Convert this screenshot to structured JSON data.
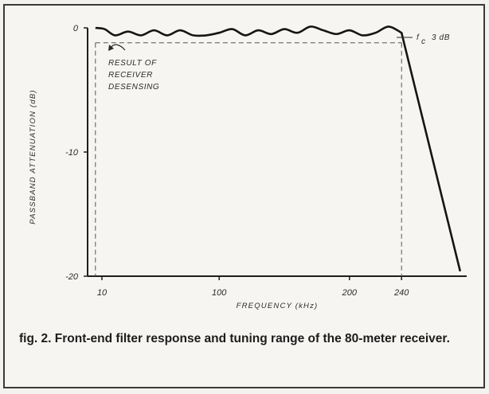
{
  "chart_data": {
    "type": "line",
    "title": "",
    "xlabel": "FREQUENCY (kHz)",
    "ylabel": "PASSBAND ATTENUATION (dB)",
    "x_tick_labels": [
      "10",
      "100",
      "200",
      "240"
    ],
    "x_ticks": [
      10,
      100,
      200,
      240
    ],
    "y_tick_labels": [
      "0",
      "-10",
      "-20"
    ],
    "y_ticks": [
      0,
      -10,
      -20
    ],
    "xlim": [
      -1,
      290
    ],
    "ylim": [
      -20,
      0
    ],
    "grid": false,
    "series": [
      {
        "x": [
          5,
          12,
          20,
          30,
          40,
          50,
          60,
          70,
          80,
          90,
          100,
          110,
          120,
          130,
          140,
          150,
          160,
          170,
          180,
          190,
          200,
          210,
          220,
          230,
          240,
          285
        ],
        "values": [
          0,
          -0.1,
          -0.6,
          -0.3,
          -0.6,
          -0.2,
          -0.6,
          -0.2,
          -0.6,
          -0.6,
          -0.4,
          -0.1,
          -0.6,
          -0.2,
          -0.5,
          -0.1,
          -0.4,
          0.1,
          -0.2,
          -0.5,
          -0.2,
          -0.6,
          -0.4,
          0.1,
          -0.4,
          -19.6
        ]
      }
    ],
    "reference_lines": {
      "h_level": -1.2,
      "h_x_range": [
        5,
        240
      ],
      "v_left_x": 5,
      "v_right_x": 240
    },
    "annotations": {
      "desensing": [
        "RESULT OF",
        "RECEIVER",
        "DESENSING"
      ],
      "cutoff_symbol": "f",
      "cutoff_subscript": "c",
      "cutoff_value": "3 dB"
    }
  },
  "caption": "fig. 2. Front-end filter response and tuning range of the 80-meter receiver."
}
